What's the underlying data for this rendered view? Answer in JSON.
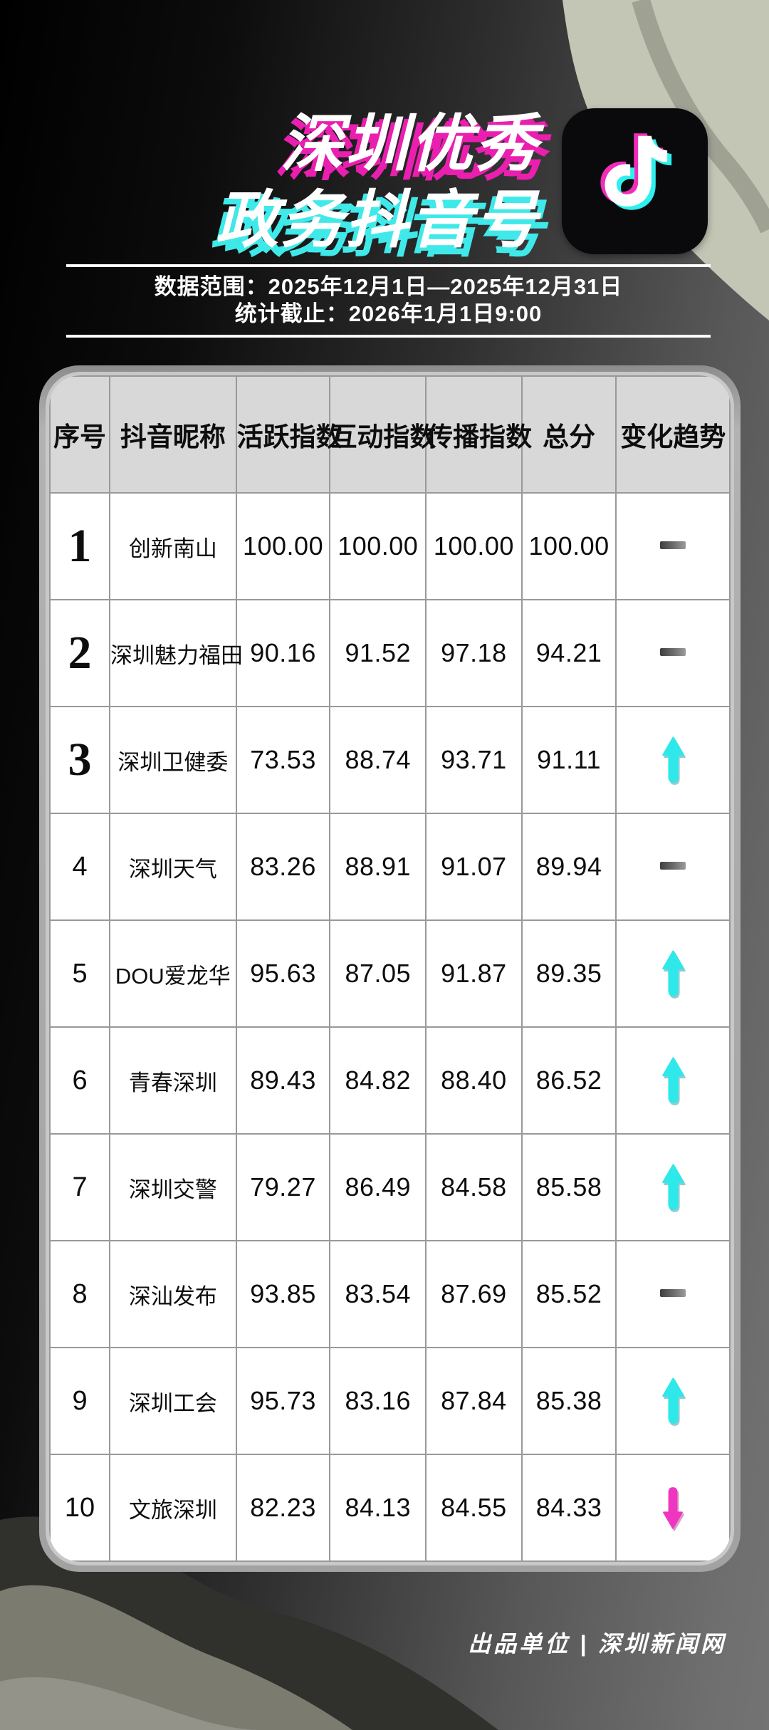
{
  "header": {
    "title_line1": "深圳优秀",
    "title_line2": "政务抖音号",
    "logo_icon": "douyin-note-icon",
    "date_range": "数据范围：2025年12月1日—2025年12月31日",
    "stat_deadline": "统计截止：2026年1月1日9:00"
  },
  "colors": {
    "title_shadow_magenta": "#ea1fb0",
    "title_shadow_cyan": "#40e9e9",
    "arrow_up_cyan": "#2ee8ea",
    "arrow_down_magenta": "#f036c0",
    "header_cell_bg": "#d8d8d8",
    "card_frame_gray": "#a8a8a8"
  },
  "chart_data": {
    "type": "table",
    "title": "深圳优秀政务抖音号",
    "columns": [
      "序号",
      "抖音昵称",
      "活跃指数",
      "互动指数",
      "传播指数",
      "总分",
      "变化趋势"
    ],
    "rows": [
      {
        "rank": "1",
        "name": "创新南山",
        "activity": "100.00",
        "interaction": "100.00",
        "spread": "100.00",
        "total": "100.00",
        "trend": "flat"
      },
      {
        "rank": "2",
        "name": "深圳魅力福田",
        "activity": "90.16",
        "interaction": "91.52",
        "spread": "97.18",
        "total": "94.21",
        "trend": "flat"
      },
      {
        "rank": "3",
        "name": "深圳卫健委",
        "activity": "73.53",
        "interaction": "88.74",
        "spread": "93.71",
        "total": "91.11",
        "trend": "up"
      },
      {
        "rank": "4",
        "name": "深圳天气",
        "activity": "83.26",
        "interaction": "88.91",
        "spread": "91.07",
        "total": "89.94",
        "trend": "flat"
      },
      {
        "rank": "5",
        "name": "DOU爱龙华",
        "activity": "95.63",
        "interaction": "87.05",
        "spread": "91.87",
        "total": "89.35",
        "trend": "up"
      },
      {
        "rank": "6",
        "name": "青春深圳",
        "activity": "89.43",
        "interaction": "84.82",
        "spread": "88.40",
        "total": "86.52",
        "trend": "up"
      },
      {
        "rank": "7",
        "name": "深圳交警",
        "activity": "79.27",
        "interaction": "86.49",
        "spread": "84.58",
        "total": "85.58",
        "trend": "up"
      },
      {
        "rank": "8",
        "name": "深汕发布",
        "activity": "93.85",
        "interaction": "83.54",
        "spread": "87.69",
        "total": "85.52",
        "trend": "flat"
      },
      {
        "rank": "9",
        "name": "深圳工会",
        "activity": "95.73",
        "interaction": "83.16",
        "spread": "87.84",
        "total": "85.38",
        "trend": "up"
      },
      {
        "rank": "10",
        "name": "文旅深圳",
        "activity": "82.23",
        "interaction": "84.13",
        "spread": "84.55",
        "total": "84.33",
        "trend": "down"
      }
    ]
  },
  "footer": {
    "credit": "出品单位 | 深圳新闻网"
  }
}
